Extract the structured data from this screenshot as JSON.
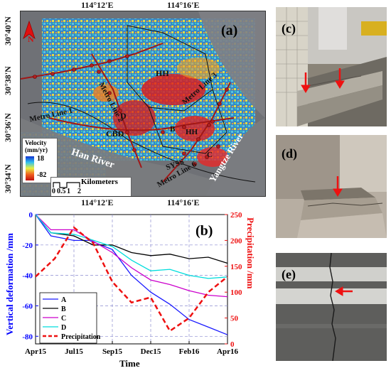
{
  "map": {
    "panel_label": "(a)",
    "north_label": "N",
    "top_coords": [
      "114°12'E",
      "114°16'E"
    ],
    "bottom_coords": [
      "114°12'E",
      "114°16'E"
    ],
    "left_coords": [
      "30°40'N",
      "30°38'N",
      "30°36'N",
      "30°34'N"
    ],
    "labels": {
      "hh1": "HH",
      "hh2": "HH",
      "metro_line_1": "Metro Line 1",
      "metro_line_2": "Metro Line 2",
      "metro_line_3": "Metro Line 3",
      "metro_line_6": "Metro Line 6",
      "cbd": "CBD",
      "d": "D",
      "b": "B",
      "c": "C",
      "sysc": "SYSS",
      "han_river": "Han River",
      "yangtze_river": "Yangtze River"
    },
    "legend": {
      "title_line1": "Velocity",
      "title_line2": "(mm/yr)",
      "max": "18",
      "min": "-82"
    },
    "scalebar": {
      "title": "Kilometers",
      "ticks": [
        "0",
        "0.5",
        "1",
        "2"
      ]
    }
  },
  "chart": {
    "panel_label": "(b)",
    "xlabel": "Time",
    "ylabel_left": "Vertical deformation /mm",
    "ylabel_right": "Precipitation /mm",
    "x_ticks": [
      "Apr15",
      "Jul15",
      "Sep15",
      "Dec15",
      "Feb16",
      "Apr16"
    ],
    "y_ticks_left": [
      "0",
      "-20",
      "-40",
      "-60",
      "-80"
    ],
    "y_ticks_right": [
      "250",
      "200",
      "150",
      "100",
      "50",
      "0"
    ],
    "legend": [
      "A",
      "B",
      "C",
      "D",
      "Precipitation"
    ]
  },
  "chart_data": {
    "type": "line",
    "xlabel": "Time",
    "ylabel": "Vertical deformation /mm",
    "y2label": "Precipitation /mm",
    "ylim": [
      -85,
      0
    ],
    "y2lim": [
      0,
      250
    ],
    "x_categories": [
      "Apr15",
      "Jul15",
      "Sep15",
      "Dec15",
      "Feb16",
      "Apr16"
    ],
    "x_index": [
      0,
      1,
      1.5,
      2,
      2.5,
      3,
      3.5,
      4,
      4.5,
      5,
      5.5,
      6,
      6.5,
      7,
      7.5,
      8,
      8.5,
      9,
      9.5,
      10
    ],
    "series": [
      {
        "name": "A",
        "axis": "left",
        "color": "#1a1aff",
        "x": [
          0,
          0.4,
          1.0,
          1.4,
          2.0,
          2.5,
          3.0,
          3.5,
          4.0,
          4.5,
          5.0
        ],
        "values": [
          0,
          -14,
          -17,
          -17,
          -23,
          -40,
          -51,
          -59,
          -69,
          -74,
          -79
        ]
      },
      {
        "name": "B",
        "axis": "left",
        "color": "#000000",
        "x": [
          0,
          0.4,
          1.0,
          1.5,
          2.0,
          2.5,
          3.0,
          3.5,
          4.0,
          4.5,
          5.0
        ],
        "values": [
          0,
          -12,
          -14,
          -20,
          -20,
          -25,
          -27,
          -26,
          -29,
          -28,
          -32
        ]
      },
      {
        "name": "C",
        "axis": "left",
        "color": "#cc00cc",
        "x": [
          0,
          0.4,
          1.0,
          1.4,
          2.0,
          2.5,
          3.0,
          3.5,
          4.0,
          4.5,
          5.0
        ],
        "values": [
          0,
          -10,
          -10,
          -16,
          -25,
          -35,
          -43,
          -46,
          -50,
          -53,
          -54
        ]
      },
      {
        "name": "D",
        "axis": "left",
        "color": "#00dddd",
        "x": [
          0,
          0.4,
          1.0,
          1.4,
          2.0,
          2.5,
          3.0,
          3.5,
          4.0,
          4.5,
          5.0
        ],
        "values": [
          0,
          -12,
          -13,
          -16,
          -21,
          -30,
          -37,
          -36,
          -40,
          -42,
          -41
        ]
      },
      {
        "name": "Precipitation",
        "axis": "right",
        "color": "#ee1111",
        "dashed": true,
        "x": [
          0,
          0.5,
          1.0,
          1.5,
          2.0,
          2.5,
          3.0,
          3.5,
          4.0,
          4.5,
          5.0
        ],
        "values": [
          130,
          165,
          225,
          195,
          120,
          80,
          90,
          25,
          50,
          100,
          130
        ]
      }
    ]
  },
  "photos": {
    "c_label": "(c)",
    "d_label": "(d)",
    "e_label": "(e)"
  },
  "colors": {
    "deform_axis": "#0000ff",
    "precip_axis": "#ee1111",
    "arrow": "#ee1111"
  }
}
